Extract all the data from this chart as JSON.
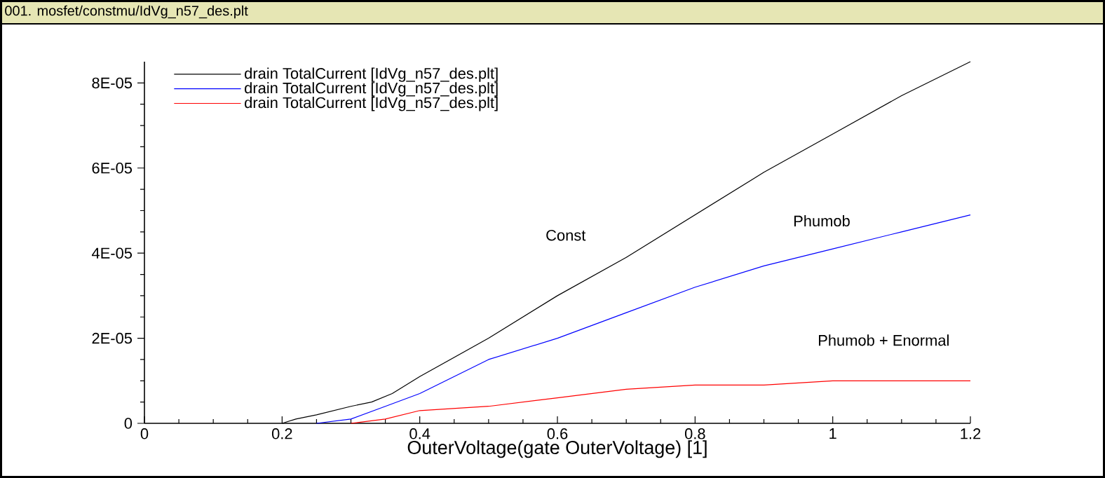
{
  "chart_data": {
    "type": "line",
    "title": "001. mosfet/constmu/IdVg_n57_des.plt",
    "xlabel": "OuterVoltage(gate OuterVoltage) [1]",
    "xlim": [
      0,
      1.2
    ],
    "xticks": [
      0,
      0.2,
      0.4,
      0.6,
      0.8,
      1,
      1.2
    ],
    "ylim": [
      0,
      8.5e-05
    ],
    "yticks": [
      0,
      {
        "value": 2e-05,
        "label": "2E-05"
      },
      {
        "value": 4e-05,
        "label": "4E-05"
      },
      {
        "value": 6e-05,
        "label": "6E-05"
      },
      {
        "value": 8e-05,
        "label": "8E-05"
      }
    ],
    "legend": "top left",
    "line_style": "solid",
    "series": [
      {
        "name": "drain TotalCurrent [IdVg_n57_des.plt]",
        "color": "#000000",
        "x": [
          0.2,
          0.22,
          0.25,
          0.3,
          0.33,
          0.36,
          0.4,
          0.5,
          0.6,
          0.7,
          0.8,
          0.9,
          1.0,
          1.1,
          1.2
        ],
        "values": [
          0,
          1e-06,
          2e-06,
          4e-06,
          5e-06,
          7e-06,
          1.1e-05,
          2e-05,
          3e-05,
          3.9e-05,
          4.9e-05,
          5.9e-05,
          6.8e-05,
          7.7e-05,
          8.5e-05
        ]
      },
      {
        "name": "drain TotalCurrent [IdVg_n57_des.plt]",
        "color": "#0000ff",
        "x": [
          0.25,
          0.3,
          0.35,
          0.4,
          0.45,
          0.5,
          0.6,
          0.7,
          0.8,
          0.9,
          1.0,
          1.1,
          1.2
        ],
        "values": [
          0,
          1e-06,
          4e-06,
          7e-06,
          1.1e-05,
          1.5e-05,
          2e-05,
          2.6e-05,
          3.2e-05,
          3.7e-05,
          4.1e-05,
          4.5e-05,
          4.9e-05
        ]
      },
      {
        "name": "drain TotalCurrent [IdVg_n57_des.plt]",
        "color": "#ff0000",
        "x": [
          0.3,
          0.35,
          0.4,
          0.5,
          0.6,
          0.7,
          0.8,
          0.9,
          1.0,
          1.1,
          1.2
        ],
        "values": [
          0,
          1e-06,
          3e-06,
          4e-06,
          6e-06,
          8e-06,
          9e-06,
          9e-06,
          1e-05,
          1e-05,
          1e-05
        ]
      }
    ],
    "annotations": [
      "Const",
      "Phumob",
      "Phumob + Enormal"
    ]
  }
}
